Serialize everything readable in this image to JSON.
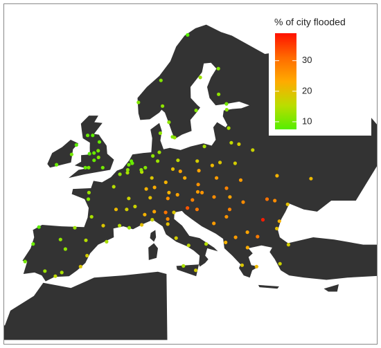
{
  "chart_data": {
    "type": "map",
    "legend_title": "% of city flooded",
    "x": [
      -0.1,
      -1.9,
      -2.2,
      -1.5,
      -4.2,
      -3.2,
      -2.6,
      -1.6,
      -3,
      -1.2,
      -3.2,
      -6.3,
      -8.5,
      -5.9,
      10.7,
      5.3,
      18,
      12,
      13,
      12.6,
      10.2,
      25,
      23.8,
      25.5,
      20.3,
      10.4,
      19,
      24.7,
      24.1,
      25.3,
      23.9,
      4.9,
      4.5,
      4.4,
      4.4,
      5.1,
      13.4,
      10,
      11.6,
      6.9,
      8.7,
      9.2,
      6.8,
      7.5,
      12.4,
      13.7,
      9.7,
      11.1,
      8.8,
      2.3,
      4.8,
      5.4,
      1.4,
      -0.6,
      -1.6,
      3.1,
      7.8,
      7.3,
      -1.7,
      3.9,
      5,
      3.1,
      -3.7,
      2.2,
      -0.4,
      -6,
      -9.1,
      -8.6,
      -2.9,
      -0.9,
      -4.4,
      -1.1,
      -4.7,
      -8.4,
      -3.6,
      12.5,
      9.2,
      14.3,
      7.7,
      11.3,
      11.3,
      12.3,
      16.9,
      13.4,
      8.9,
      11,
      15.1,
      8.5,
      6.1,
      16.4,
      15.4,
      11.4,
      13,
      14.4,
      16.6,
      21,
      19.9,
      19.5,
      17,
      16.9,
      18.6,
      19,
      21.6,
      17.1,
      21.3,
      14.5,
      16,
      20.5,
      18.4,
      26.1,
      23.6,
      27.6,
      21.2,
      28.6,
      23.3,
      24.7,
      27.9,
      21.4,
      19.8,
      22.9,
      23.7,
      21.7,
      29,
      27.1,
      27.6,
      30.5,
      24,
      30.7,
      28.8,
      36.2,
      23.7
    ],
    "y": [
      51.5,
      52.5,
      53.5,
      53.8,
      55.9,
      55.9,
      51.5,
      55,
      53.4,
      52.9,
      51.5,
      53.3,
      51.9,
      54.6,
      59.9,
      60.4,
      59.3,
      57.7,
      55.6,
      55.7,
      56.2,
      60.2,
      61.5,
      65,
      63.8,
      63.4,
      69.6,
      59.4,
      56.9,
      54.7,
      54.9,
      52.4,
      51.9,
      50.8,
      51.2,
      52.1,
      52.5,
      53.6,
      48.1,
      50.9,
      50.1,
      48.8,
      51.2,
      51.5,
      51.3,
      51,
      52.4,
      49.5,
      53.1,
      48.9,
      45.8,
      43.3,
      43.6,
      44.8,
      47.2,
      50.6,
      48.6,
      43.7,
      48.1,
      43.6,
      47.3,
      45.8,
      40.4,
      41.4,
      39.5,
      37.4,
      38.7,
      41.1,
      43.3,
      41.6,
      36.7,
      38,
      41.7,
      43.4,
      37.2,
      41.9,
      45.5,
      40.9,
      45.1,
      43.8,
      44.5,
      45.4,
      41.1,
      38.1,
      44.4,
      45.4,
      37.5,
      47.4,
      46.2,
      48.2,
      47.1,
      47.3,
      47.8,
      50.1,
      49.2,
      52.2,
      50.1,
      51.8,
      51.1,
      52.4,
      54.4,
      47.5,
      47.5,
      48.1,
      48.7,
      46,
      45.8,
      44.8,
      43.9,
      44.4,
      46.8,
      47.2,
      45.8,
      44.2,
      42.7,
      42.1,
      43.2,
      42,
      41.3,
      40.6,
      38,
      38.2,
      41,
      38.4,
      53.9,
      50.4,
      49.8,
      46.5,
      47,
      50,
      52.1
    ],
    "values": [
      10,
      9,
      9,
      10,
      9,
      8,
      10,
      9,
      8,
      11,
      9,
      10,
      9,
      8,
      12,
      11,
      11,
      12,
      13,
      11,
      12,
      10,
      12,
      11,
      13,
      11,
      7,
      12,
      14,
      18,
      16,
      9,
      10,
      14,
      12,
      9,
      16,
      13,
      22,
      15,
      19,
      23,
      12,
      11,
      20,
      24,
      13,
      22,
      12,
      15,
      18,
      13,
      19,
      14,
      11,
      12,
      22,
      20,
      13,
      15,
      17,
      21,
      12,
      14,
      18,
      13,
      10,
      9,
      13,
      15,
      16,
      19,
      12,
      8,
      14,
      18,
      24,
      16,
      22,
      20,
      27,
      19,
      15,
      14,
      17,
      30,
      18,
      20,
      17,
      25,
      28,
      26,
      24,
      23,
      26,
      19,
      25,
      21,
      24,
      18,
      14,
      27,
      24,
      26,
      28,
      33,
      29,
      26,
      25,
      38,
      27,
      30,
      28,
      22,
      24,
      29,
      20,
      25,
      22,
      23,
      21,
      19,
      18,
      17,
      17,
      22,
      25,
      20,
      27,
      21,
      18
    ],
    "colorbar": {
      "lim": [
        7.5,
        39
      ],
      "ticks": [
        10,
        20,
        30
      ],
      "colors": [
        "#55ee00",
        "#bbdd00",
        "#ffaa00",
        "#ff6a00",
        "#ff1100"
      ]
    }
  }
}
